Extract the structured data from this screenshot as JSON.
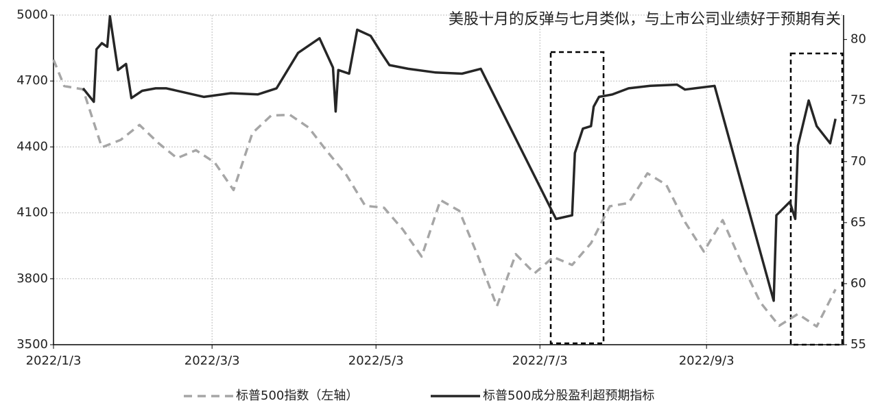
{
  "chart_data": {
    "type": "line",
    "title": "美股十月的反弹与七月类似，与上市公司业绩好于预期有关",
    "xlim": [
      "2022/1/3",
      "2022/10/24"
    ],
    "xticks": [
      "2022/1/3",
      "2022/3/3",
      "2022/5/3",
      "2022/7/3",
      "2022/9/3"
    ],
    "ylim": [
      3500,
      5000
    ],
    "yticks": [
      3500,
      3800,
      4100,
      4400,
      4700,
      5000
    ],
    "y2lim": [
      55,
      82
    ],
    "y2ticks": [
      55,
      60,
      65,
      70,
      75,
      80
    ],
    "grid": true,
    "legend": "bottom",
    "series": [
      {
        "name": "标普500指数（左轴）",
        "color": "#a6a6a6",
        "dash": true,
        "x": [
          "2022/1/3",
          "2022/1/7",
          "2022/1/14",
          "2022/1/21",
          "2022/1/28",
          "2022/2/4",
          "2022/2/11",
          "2022/2/18",
          "2022/2/25",
          "2022/3/4",
          "2022/3/11",
          "2022/3/18",
          "2022/3/25",
          "2022/4/1",
          "2022/4/8",
          "2022/4/14",
          "2022/4/22",
          "2022/4/29",
          "2022/5/6",
          "2022/5/13",
          "2022/5/20",
          "2022/5/27",
          "2022/6/3",
          "2022/6/10",
          "2022/6/17",
          "2022/6/24",
          "2022/7/1",
          "2022/7/8",
          "2022/7/15",
          "2022/7/22",
          "2022/7/29",
          "2022/8/5",
          "2022/8/12",
          "2022/8/19",
          "2022/8/26",
          "2022/9/2",
          "2022/9/9",
          "2022/9/16",
          "2022/9/23",
          "2022/9/30",
          "2022/10/7",
          "2022/10/14",
          "2022/10/21"
        ],
        "values": [
          4797,
          4677,
          4662,
          4398,
          4432,
          4500,
          4418,
          4349,
          4385,
          4329,
          4204,
          4463,
          4543,
          4546,
          4488,
          4392,
          4272,
          4132,
          4123,
          4024,
          3901,
          4158,
          4109,
          3901,
          3675,
          3912,
          3825,
          3899,
          3863,
          3962,
          4130,
          4145,
          4280,
          4228,
          4058,
          3924,
          4067,
          3873,
          3693,
          3586,
          3640,
          3583,
          3752
        ]
      },
      {
        "name": "标普500成分股盈利超预期指标",
        "color": "#262626",
        "axis": "y2",
        "x": [
          "2022/1/14",
          "2022/1/18",
          "2022/1/19",
          "2022/1/21",
          "2022/1/23",
          "2022/1/24",
          "2022/1/27",
          "2022/1/30",
          "2022/2/1",
          "2022/2/5",
          "2022/2/10",
          "2022/2/14",
          "2022/2/28",
          "2022/3/10",
          "2022/3/20",
          "2022/3/27",
          "2022/4/4",
          "2022/4/12",
          "2022/4/17",
          "2022/4/18",
          "2022/4/19",
          "2022/4/23",
          "2022/4/26",
          "2022/5/1",
          "2022/5/5",
          "2022/5/8",
          "2022/5/15",
          "2022/5/25",
          "2022/6/4",
          "2022/6/11",
          "2022/7/9",
          "2022/7/15",
          "2022/7/16",
          "2022/7/19",
          "2022/7/22",
          "2022/7/23",
          "2022/7/25",
          "2022/7/30",
          "2022/8/5",
          "2022/8/13",
          "2022/8/23",
          "2022/8/26",
          "2022/9/6",
          "2022/9/28",
          "2022/9/29",
          "2022/10/4",
          "2022/10/6",
          "2022/10/7",
          "2022/10/11",
          "2022/10/14",
          "2022/10/19",
          "2022/10/21"
        ],
        "values": [
          76.0,
          74.9,
          79.2,
          79.7,
          79.4,
          81.9,
          77.5,
          78.0,
          75.2,
          75.8,
          76.0,
          76.0,
          75.3,
          75.6,
          75.5,
          76.0,
          78.9,
          80.1,
          77.7,
          74.1,
          77.5,
          77.2,
          80.8,
          80.3,
          78.9,
          77.9,
          77.6,
          77.3,
          77.2,
          77.6,
          65.3,
          65.6,
          70.7,
          72.7,
          72.9,
          74.5,
          75.3,
          75.5,
          76.0,
          76.2,
          76.3,
          75.9,
          76.2,
          58.6,
          65.6,
          66.7,
          65.3,
          71.3,
          75.0,
          72.9,
          71.5,
          73.5
        ]
      }
    ]
  }
}
